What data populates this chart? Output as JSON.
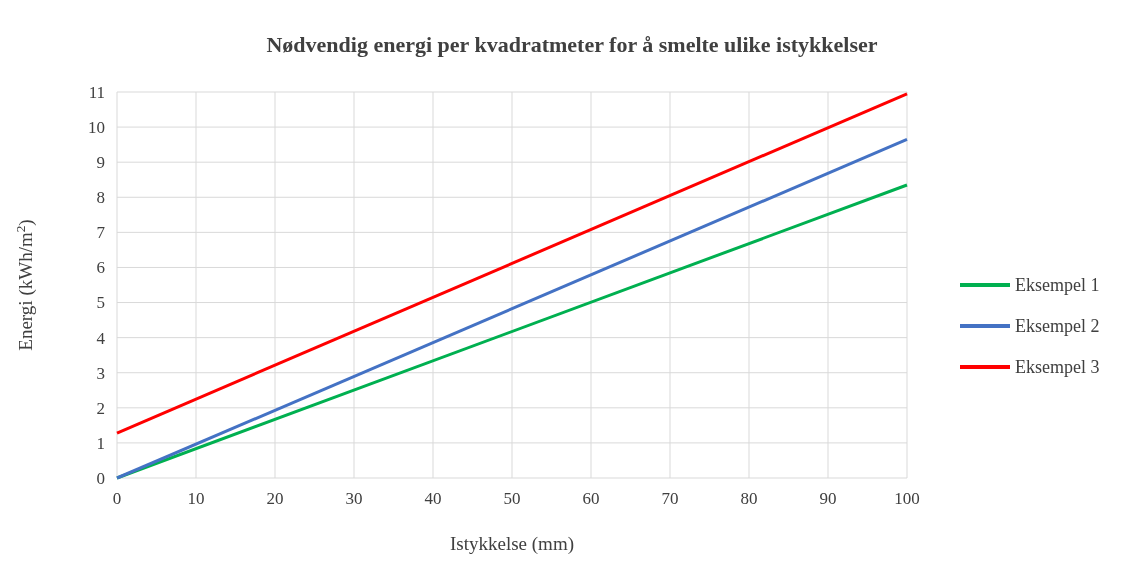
{
  "chart_data": {
    "type": "line",
    "title": "Nødvendig energi per kvadratmeter for å smelte ulike istykkelser",
    "xlabel": "Istykkelse (mm)",
    "ylabel": "Energi (kWh/m$^{2}$)",
    "x": [
      0,
      100
    ],
    "series": [
      {
        "name": "Eksempel 1",
        "color": "#00b050",
        "values": [
          0,
          8.35
        ]
      },
      {
        "name": "Eksempel 2",
        "color": "#4472c4",
        "values": [
          0,
          9.65
        ]
      },
      {
        "name": "Eksempel 3",
        "color": "#ff0000",
        "values": [
          1.28,
          10.95
        ]
      }
    ],
    "xlim": [
      0,
      100
    ],
    "xticks": [
      0,
      10,
      20,
      30,
      40,
      50,
      60,
      70,
      80,
      90,
      100
    ],
    "ylim": [
      0,
      11
    ],
    "yticks": [
      0,
      1,
      2,
      3,
      4,
      5,
      6,
      7,
      8,
      9,
      10,
      11
    ],
    "grid": true,
    "legend": "right",
    "marker": "none",
    "line_style": "solid"
  }
}
